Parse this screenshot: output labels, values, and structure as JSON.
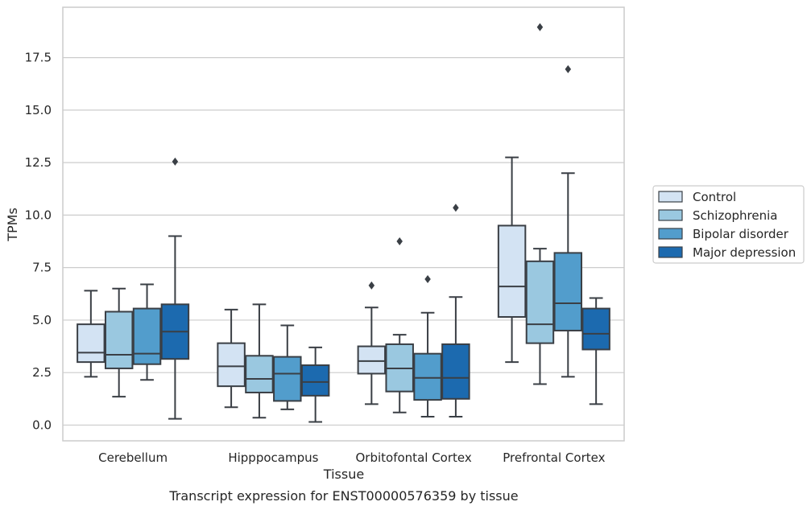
{
  "chart_data": {
    "type": "box",
    "caption": "Transcript expression for ENST00000576359 by tissue",
    "xlabel": "Tissue",
    "ylabel": "TPMs",
    "ylim": [
      -0.75,
      19.9
    ],
    "yticks": [
      0.0,
      2.5,
      5.0,
      7.5,
      10.0,
      12.5,
      15.0,
      17.5
    ],
    "ytick_labels": [
      "0.0",
      "2.5",
      "5.0",
      "7.5",
      "10.0",
      "12.5",
      "15.0",
      "17.5"
    ],
    "grid": true,
    "legend_position": "right",
    "categories": [
      "Cerebellum",
      "Hipppocampus",
      "Orbitofontal Cortex",
      "Prefrontal Cortex"
    ],
    "series": [
      {
        "name": "Control",
        "color": "#d3e3f3",
        "boxes": [
          {
            "whislo": 2.3,
            "q1": 3.0,
            "med": 3.45,
            "q3": 4.8,
            "whishi": 6.4,
            "fliers": []
          },
          {
            "whislo": 0.85,
            "q1": 1.85,
            "med": 2.8,
            "q3": 3.9,
            "whishi": 5.5,
            "fliers": []
          },
          {
            "whislo": 1.0,
            "q1": 2.45,
            "med": 3.05,
            "q3": 3.75,
            "whishi": 5.6,
            "fliers": [
              6.65
            ]
          },
          {
            "whislo": 3.0,
            "q1": 5.15,
            "med": 6.6,
            "q3": 9.5,
            "whishi": 12.75,
            "fliers": []
          }
        ]
      },
      {
        "name": "Schizophrenia",
        "color": "#9ac8e0",
        "boxes": [
          {
            "whislo": 1.35,
            "q1": 2.7,
            "med": 3.35,
            "q3": 5.4,
            "whishi": 6.5,
            "fliers": []
          },
          {
            "whislo": 0.35,
            "q1": 1.55,
            "med": 2.2,
            "q3": 3.3,
            "whishi": 5.75,
            "fliers": []
          },
          {
            "whislo": 0.6,
            "q1": 1.6,
            "med": 2.7,
            "q3": 3.85,
            "whishi": 4.3,
            "fliers": [
              8.75
            ]
          },
          {
            "whislo": 1.95,
            "q1": 3.9,
            "med": 4.8,
            "q3": 7.8,
            "whishi": 8.4,
            "fliers": [
              18.95
            ]
          }
        ]
      },
      {
        "name": "Bipolar disorder",
        "color": "#529dcc",
        "boxes": [
          {
            "whislo": 2.15,
            "q1": 2.9,
            "med": 3.4,
            "q3": 5.55,
            "whishi": 6.7,
            "fliers": []
          },
          {
            "whislo": 0.75,
            "q1": 1.15,
            "med": 2.45,
            "q3": 3.25,
            "whishi": 4.75,
            "fliers": []
          },
          {
            "whislo": 0.4,
            "q1": 1.2,
            "med": 2.25,
            "q3": 3.4,
            "whishi": 5.35,
            "fliers": [
              6.95
            ]
          },
          {
            "whislo": 2.3,
            "q1": 4.5,
            "med": 5.8,
            "q3": 8.2,
            "whishi": 12.0,
            "fliers": [
              16.95
            ]
          }
        ]
      },
      {
        "name": "Major depression",
        "color": "#1c6aaf",
        "boxes": [
          {
            "whislo": 0.3,
            "q1": 3.15,
            "med": 4.45,
            "q3": 5.75,
            "whishi": 9.0,
            "fliers": [
              12.55
            ]
          },
          {
            "whislo": 0.15,
            "q1": 1.4,
            "med": 2.05,
            "q3": 2.85,
            "whishi": 3.7,
            "fliers": []
          },
          {
            "whislo": 0.4,
            "q1": 1.25,
            "med": 2.25,
            "q3": 3.85,
            "whishi": 6.1,
            "fliers": [
              10.35
            ]
          },
          {
            "whislo": 1.0,
            "q1": 3.6,
            "med": 4.35,
            "q3": 5.55,
            "whishi": 6.05,
            "fliers": []
          }
        ]
      }
    ]
  }
}
